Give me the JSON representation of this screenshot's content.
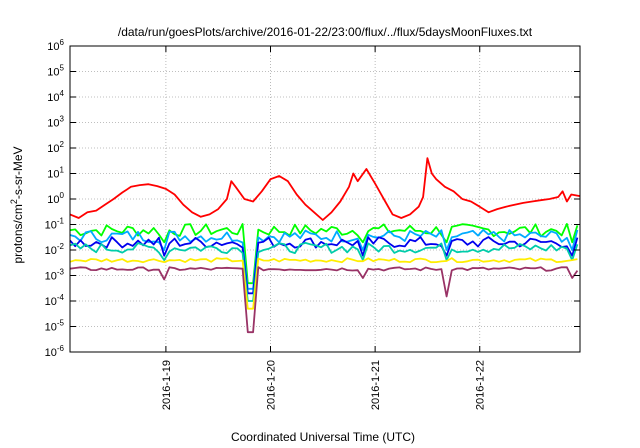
{
  "chart_data": {
    "type": "line",
    "title": "/data/run/goesPlots/archive/2016-01-22/23:00/flux/../flux/5daysMoonFluxes.txt",
    "xlabel": "Coordinated Universal Time (UTC)",
    "ylabel": {
      "pre": "protons/cm",
      "sup": "2",
      "post": "-s-sr-MeV"
    },
    "xlim": [
      "2016-01-18T02:00",
      "2016-01-22T23:00"
    ],
    "yscale": "log",
    "ylim": [
      1e-06,
      1000000.0
    ],
    "y_ticks": [
      {
        "value": 1e-06,
        "base": "10",
        "exp": "-6"
      },
      {
        "value": 1e-05,
        "base": "10",
        "exp": "-5"
      },
      {
        "value": 0.0001,
        "base": "10",
        "exp": "-4"
      },
      {
        "value": 0.001,
        "base": "10",
        "exp": "-3"
      },
      {
        "value": 0.01,
        "base": "10",
        "exp": "-2"
      },
      {
        "value": 0.1,
        "base": "10",
        "exp": "-1"
      },
      {
        "value": 1,
        "base": "10",
        "exp": "0"
      },
      {
        "value": 10.0,
        "base": "10",
        "exp": "1"
      },
      {
        "value": 100.0,
        "base": "10",
        "exp": "2"
      },
      {
        "value": 1000.0,
        "base": "10",
        "exp": "3"
      },
      {
        "value": 10000.0,
        "base": "10",
        "exp": "4"
      },
      {
        "value": 100000.0,
        "base": "10",
        "exp": "5"
      },
      {
        "value": 1000000.0,
        "base": "10",
        "exp": "6"
      }
    ],
    "x_ticks": [
      {
        "value": "2016-01-19T00:00",
        "label": "2016-1-19"
      },
      {
        "value": "2016-01-20T00:00",
        "label": "2016-1-20"
      },
      {
        "value": "2016-01-21T00:00",
        "label": "2016-1-21"
      },
      {
        "value": "2016-01-22T00:00",
        "label": "2016-1-22"
      }
    ],
    "grid": true,
    "legend": "none",
    "series": [
      {
        "color": "#ff0000",
        "points": [
          [
            "2016-01-18T02:00",
            0.25
          ],
          [
            "2016-01-18T04:00",
            0.18
          ],
          [
            "2016-01-18T06:00",
            0.3
          ],
          [
            "2016-01-18T08:00",
            0.35
          ],
          [
            "2016-01-18T10:00",
            0.6
          ],
          [
            "2016-01-18T12:00",
            1.0
          ],
          [
            "2016-01-18T14:00",
            1.8
          ],
          [
            "2016-01-18T16:00",
            3.0
          ],
          [
            "2016-01-18T18:00",
            3.5
          ],
          [
            "2016-01-18T20:00",
            3.8
          ],
          [
            "2016-01-18T22:00",
            3.2
          ],
          [
            "2016-01-19T00:00",
            2.5
          ],
          [
            "2016-01-19T02:00",
            1.5
          ],
          [
            "2016-01-19T04:00",
            0.6
          ],
          [
            "2016-01-19T06:00",
            0.3
          ],
          [
            "2016-01-19T08:00",
            0.2
          ],
          [
            "2016-01-19T10:00",
            0.25
          ],
          [
            "2016-01-19T12:00",
            0.4
          ],
          [
            "2016-01-19T14:00",
            1.0
          ],
          [
            "2016-01-19T15:00",
            5.0
          ],
          [
            "2016-01-19T16:00",
            3.0
          ],
          [
            "2016-01-19T18:00",
            1.0
          ],
          [
            "2016-01-19T20:00",
            0.8
          ],
          [
            "2016-01-19T22:00",
            2.0
          ],
          [
            "2016-01-20T00:00",
            6.0
          ],
          [
            "2016-01-20T02:00",
            8.0
          ],
          [
            "2016-01-20T04:00",
            5.0
          ],
          [
            "2016-01-20T06:00",
            1.5
          ],
          [
            "2016-01-20T08:00",
            0.6
          ],
          [
            "2016-01-20T10:00",
            0.3
          ],
          [
            "2016-01-20T12:00",
            0.15
          ],
          [
            "2016-01-20T14:00",
            0.3
          ],
          [
            "2016-01-20T16:00",
            0.8
          ],
          [
            "2016-01-20T18:00",
            3.0
          ],
          [
            "2016-01-20T19:00",
            10.0
          ],
          [
            "2016-01-20T20:00",
            5.0
          ],
          [
            "2016-01-20T22:00",
            15.0
          ],
          [
            "2016-01-21T00:00",
            4.0
          ],
          [
            "2016-01-21T02:00",
            1.0
          ],
          [
            "2016-01-21T04:00",
            0.25
          ],
          [
            "2016-01-21T06:00",
            0.18
          ],
          [
            "2016-01-21T08:00",
            0.25
          ],
          [
            "2016-01-21T10:00",
            0.5
          ],
          [
            "2016-01-21T11:00",
            1.2
          ],
          [
            "2016-01-21T12:00",
            40.0
          ],
          [
            "2016-01-21T13:00",
            10.0
          ],
          [
            "2016-01-21T14:00",
            6.0
          ],
          [
            "2016-01-21T16:00",
            3.0
          ],
          [
            "2016-01-21T18:00",
            2.0
          ],
          [
            "2016-01-21T20:00",
            1.0
          ],
          [
            "2016-01-21T22:00",
            0.8
          ],
          [
            "2016-01-22T00:00",
            0.5
          ],
          [
            "2016-01-22T02:00",
            0.3
          ],
          [
            "2016-01-22T04:00",
            0.4
          ],
          [
            "2016-01-22T06:00",
            0.5
          ],
          [
            "2016-01-22T08:00",
            0.6
          ],
          [
            "2016-01-22T10:00",
            0.7
          ],
          [
            "2016-01-22T12:00",
            0.8
          ],
          [
            "2016-01-22T14:00",
            0.9
          ],
          [
            "2016-01-22T16:00",
            1.0
          ],
          [
            "2016-01-22T18:00",
            1.2
          ],
          [
            "2016-01-22T19:00",
            2.0
          ],
          [
            "2016-01-22T20:00",
            0.8
          ],
          [
            "2016-01-22T21:00",
            1.5
          ],
          [
            "2016-01-22T23:00",
            1.3
          ]
        ]
      },
      {
        "color": "#00ff00",
        "base": 0.06,
        "noise": 0.25,
        "dips": [
          [
            "2016-01-18T23:30",
            0.02
          ],
          [
            "2016-01-19T19:30",
            0.0005
          ],
          [
            "2016-01-20T21:30",
            0.02
          ],
          [
            "2016-01-21T16:00",
            0.02
          ],
          [
            "2016-01-22T21:30",
            0.02
          ]
        ]
      },
      {
        "color": "#00aaff",
        "base": 0.035,
        "noise": 0.25,
        "dips": [
          [
            "2016-01-18T23:30",
            0.01
          ],
          [
            "2016-01-19T19:30",
            0.0003
          ],
          [
            "2016-01-20T21:30",
            0.01
          ],
          [
            "2016-01-21T16:00",
            0.01
          ],
          [
            "2016-01-22T21:30",
            0.01
          ]
        ]
      },
      {
        "color": "#0000ee",
        "base": 0.02,
        "noise": 0.22,
        "dips": [
          [
            "2016-01-18T23:30",
            0.006
          ],
          [
            "2016-01-19T19:30",
            0.0002
          ],
          [
            "2016-01-20T21:30",
            0.006
          ],
          [
            "2016-01-21T16:00",
            0.006
          ],
          [
            "2016-01-22T21:30",
            0.006
          ]
        ]
      },
      {
        "color": "#00ccaa",
        "base": 0.012,
        "noise": 0.2,
        "dips": [
          [
            "2016-01-18T23:30",
            0.004
          ],
          [
            "2016-01-19T19:30",
            0.0001
          ],
          [
            "2016-01-20T21:30",
            0.004
          ],
          [
            "2016-01-21T16:00",
            0.004
          ],
          [
            "2016-01-22T21:30",
            0.004
          ]
        ]
      },
      {
        "color": "#ffee00",
        "base": 0.004,
        "noise": 0.08,
        "dips": [
          [
            "2016-01-19T19:30",
            5e-05
          ]
        ]
      },
      {
        "color": "#993366",
        "base": 0.0018,
        "noise": 0.07,
        "dips": [
          [
            "2016-01-18T23:30",
            0.0007
          ],
          [
            "2016-01-19T19:30",
            6e-06
          ],
          [
            "2016-01-20T21:30",
            0.0008
          ],
          [
            "2016-01-21T16:00",
            0.00015
          ],
          [
            "2016-01-22T21:30",
            0.0008
          ]
        ]
      }
    ]
  }
}
